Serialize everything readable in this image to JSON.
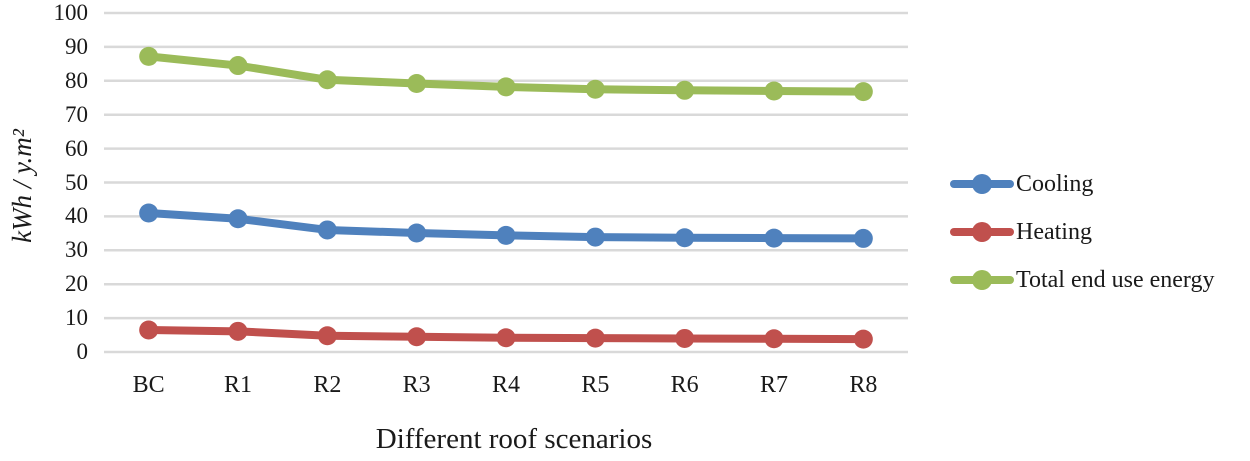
{
  "chart_data": {
    "type": "line",
    "title": "",
    "xlabel": "Different roof scenarios",
    "ylabel": "kWh / y.m²",
    "categories": [
      "BC",
      "R1",
      "R2",
      "R3",
      "R4",
      "R5",
      "R6",
      "R7",
      "R8"
    ],
    "series": [
      {
        "name": "Cooling",
        "color": "#4F81BD",
        "values": [
          41.0,
          39.3,
          36.0,
          35.1,
          34.4,
          33.9,
          33.7,
          33.6,
          33.5
        ]
      },
      {
        "name": "Heating",
        "color": "#C0504D",
        "values": [
          6.5,
          6.1,
          4.8,
          4.5,
          4.2,
          4.1,
          4.0,
          3.9,
          3.8
        ]
      },
      {
        "name": "Total end use energy",
        "color": "#9BBB59",
        "values": [
          87.2,
          84.5,
          80.3,
          79.2,
          78.2,
          77.5,
          77.2,
          77.0,
          76.8
        ]
      }
    ],
    "y_axis": {
      "min": 0,
      "max": 100,
      "step": 10,
      "tick_labels": [
        "0",
        "10",
        "20",
        "30",
        "40",
        "50",
        "60",
        "70",
        "80",
        "90",
        "100"
      ]
    },
    "ylim": [
      0,
      100
    ],
    "grid": true,
    "legend_position": "right",
    "gridline_color": "#D9D9D9",
    "text_color": "#1a1a1a",
    "marker_style": "circle"
  }
}
